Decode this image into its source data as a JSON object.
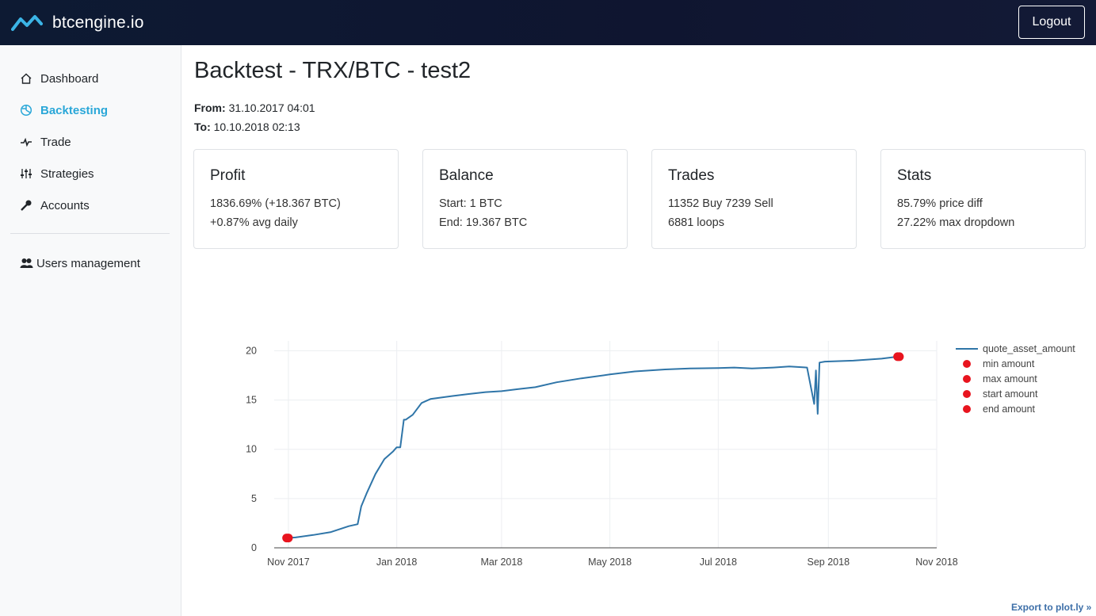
{
  "app": {
    "brand": "btcengine.io",
    "logout_label": "Logout"
  },
  "sidebar": {
    "items": [
      {
        "label": "Dashboard",
        "icon": "home-icon"
      },
      {
        "label": "Backtesting",
        "icon": "backtest-icon",
        "active": true
      },
      {
        "label": "Trade",
        "icon": "pulse-icon"
      },
      {
        "label": "Strategies",
        "icon": "sliders-icon"
      },
      {
        "label": "Accounts",
        "icon": "key-icon"
      },
      {
        "label": "Users management",
        "icon": "users-icon"
      }
    ]
  },
  "page": {
    "title": "Backtest - TRX/BTC - test2",
    "from_label": "From:",
    "from_value": "31.10.2017 04:01",
    "to_label": "To:",
    "to_value": "10.10.2018 02:13"
  },
  "cards": [
    {
      "title": "Profit",
      "line1": "1836.69% (+18.367 BTC)",
      "line2": "+0.87% avg daily"
    },
    {
      "title": "Balance",
      "line1": "Start: 1 BTC",
      "line2": "End: 19.367 BTC"
    },
    {
      "title": "Trades",
      "line1": "11352 Buy 7239 Sell",
      "line2": "6881 loops"
    },
    {
      "title": "Stats",
      "line1": "85.79% price diff",
      "line2": "27.22% max dropdown"
    }
  ],
  "export_label": "Export to plot.ly »",
  "colors": {
    "accent": "#2aa7d8",
    "line": "#2f75a8",
    "marker": "#e8141e",
    "topbar": "#0f1530"
  },
  "chart_data": {
    "type": "line",
    "x_ticks": [
      "Nov 2017",
      "Jan 2018",
      "Mar 2018",
      "May 2018",
      "Jul 2018",
      "Sep 2018",
      "Nov 2018"
    ],
    "y_ticks": [
      "0",
      "5",
      "10",
      "15",
      "20"
    ],
    "ylim": [
      0,
      21
    ],
    "xlim": [
      "2017-10-24",
      "2018-11-01"
    ],
    "grid": true,
    "legend_position": "right",
    "series": [
      {
        "name": "quote_asset_amount",
        "x": [
          "2017-10-31",
          "2017-11-05",
          "2017-11-15",
          "2017-11-25",
          "2017-12-05",
          "2017-12-10",
          "2017-12-12",
          "2017-12-15",
          "2017-12-20",
          "2017-12-25",
          "2017-12-30",
          "2018-01-01",
          "2018-01-03",
          "2018-01-05",
          "2018-01-06",
          "2018-01-10",
          "2018-01-15",
          "2018-01-20",
          "2018-02-01",
          "2018-02-10",
          "2018-02-20",
          "2018-03-01",
          "2018-03-10",
          "2018-03-20",
          "2018-04-01",
          "2018-04-15",
          "2018-05-01",
          "2018-05-15",
          "2018-06-01",
          "2018-06-15",
          "2018-07-01",
          "2018-07-10",
          "2018-07-20",
          "2018-08-01",
          "2018-08-10",
          "2018-08-20",
          "2018-08-24",
          "2018-08-25",
          "2018-08-26",
          "2018-08-27",
          "2018-08-30",
          "2018-09-15",
          "2018-10-01",
          "2018-10-10"
        ],
        "y": [
          1.0,
          1.05,
          1.3,
          1.6,
          2.2,
          2.4,
          4.2,
          5.5,
          7.5,
          9.0,
          9.8,
          10.2,
          10.2,
          13.0,
          13.0,
          13.5,
          14.7,
          15.1,
          15.4,
          15.6,
          15.8,
          15.9,
          16.1,
          16.3,
          16.8,
          17.2,
          17.6,
          17.9,
          18.1,
          18.2,
          18.25,
          18.3,
          18.2,
          18.3,
          18.4,
          18.3,
          14.6,
          18.0,
          13.6,
          18.8,
          18.9,
          19.0,
          19.2,
          19.4
        ]
      },
      {
        "name": "min amount",
        "mode": "markers",
        "x": [
          "2017-10-31"
        ],
        "y": [
          1.0
        ]
      },
      {
        "name": "max amount",
        "mode": "markers",
        "x": [
          "2018-10-10"
        ],
        "y": [
          19.4
        ]
      },
      {
        "name": "start amount",
        "mode": "markers",
        "x": [
          "2017-11-01"
        ],
        "y": [
          1.0
        ]
      },
      {
        "name": "end amount",
        "mode": "markers",
        "x": [
          "2018-10-11"
        ],
        "y": [
          19.4
        ]
      }
    ]
  }
}
